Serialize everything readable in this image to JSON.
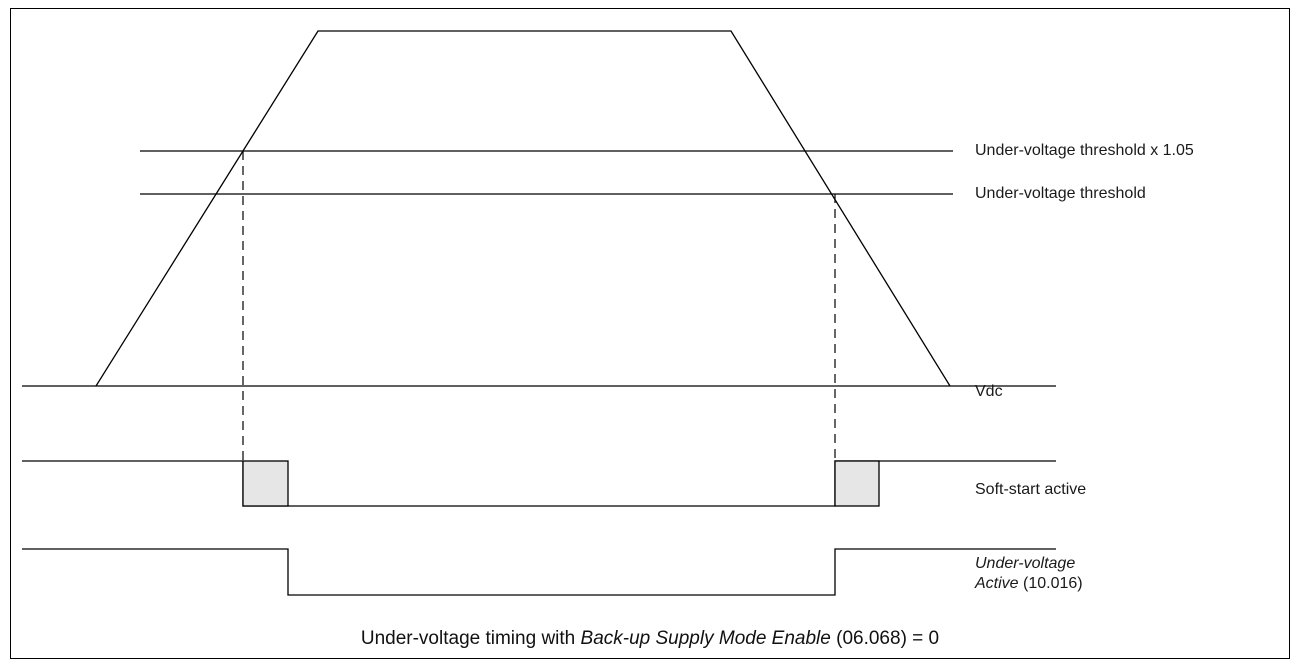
{
  "labels": {
    "uv_threshold_105": "Under-voltage threshold x 1.05",
    "uv_threshold": "Under-voltage threshold",
    "vdc": "Vdc",
    "soft_start": "Soft-start active",
    "uv_active_line1": "Under-voltage",
    "uv_active_line2_italic": "Active",
    "uv_active_line2_param": " (10.016)"
  },
  "caption": {
    "prefix": "Under-voltage timing with ",
    "param_italic": "Back-up Supply Mode Enable",
    "suffix": " (06.068) = 0"
  },
  "colors": {
    "line": "#000000",
    "soft_start_fill": "#e6e6e6",
    "frame": "#000000"
  }
}
